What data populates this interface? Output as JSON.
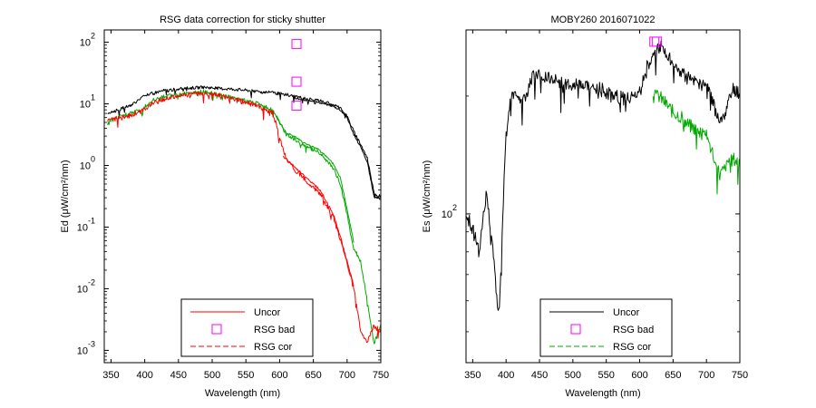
{
  "chart_data": [
    {
      "type": "line",
      "title": "RSG data correction for sticky shutter",
      "xlabel": "Wavelength (nm)",
      "ylabel": "Ed (μW/cm²/nm)",
      "xlim": [
        340,
        750
      ],
      "ylim_log10": [
        -3.2,
        2.2
      ],
      "y_scale": "log",
      "grid": false,
      "legend_position": "bottom-center",
      "x_ticks": [
        "350",
        "400",
        "450",
        "500",
        "550",
        "600",
        "650",
        "700",
        "750"
      ],
      "y_ticks": [
        {
          "base": "10",
          "exp": "-3"
        },
        {
          "base": "10",
          "exp": "-2"
        },
        {
          "base": "10",
          "exp": "-1"
        },
        {
          "base": "10",
          "exp": "0"
        },
        {
          "base": "10",
          "exp": "1"
        },
        {
          "base": "10",
          "exp": "2"
        }
      ],
      "legend": [
        {
          "label": "Uncor",
          "style": "solid",
          "color": "#ff0000"
        },
        {
          "label": "RSG bad",
          "style": "marker",
          "color": "#ff00ff"
        },
        {
          "label": "RSG cor",
          "style": "dashed",
          "color": "#ff0000"
        }
      ],
      "series": [
        {
          "color": "#000000",
          "style": "solid",
          "noise": 0.025,
          "x": [
            345,
            360,
            380,
            395,
            410,
            430,
            450,
            470,
            490,
            510,
            530,
            550,
            570,
            590,
            610,
            625,
            640,
            660,
            680,
            690,
            700,
            710,
            720,
            730,
            740,
            750
          ],
          "y": [
            0.85,
            0.9,
            0.98,
            1.1,
            1.17,
            1.22,
            1.24,
            1.26,
            1.27,
            1.25,
            1.24,
            1.22,
            1.2,
            1.18,
            1.15,
            1.12,
            1.08,
            1.05,
            0.99,
            0.93,
            0.8,
            0.55,
            0.35,
            0.12,
            -0.45,
            -0.5
          ]
        },
        {
          "color": "#000000",
          "style": "solid",
          "noise": 0.015,
          "x": [
            620,
            640,
            660,
            680,
            690,
            700,
            710,
            720,
            730,
            740,
            750
          ],
          "y": [
            1.1,
            1.05,
            1.02,
            0.96,
            0.9,
            0.78,
            0.5,
            0.3,
            0.05,
            -0.5,
            -0.55
          ]
        },
        {
          "color": "#00aa00",
          "style": "solid",
          "noise": 0.03,
          "x": [
            345,
            360,
            380,
            395,
            410,
            430,
            450,
            470,
            490,
            510,
            530,
            550,
            570,
            590,
            600,
            610,
            625,
            640,
            660,
            680,
            690,
            700,
            705,
            710,
            720,
            730,
            740,
            750
          ],
          "y": [
            0.7,
            0.78,
            0.85,
            0.9,
            1.05,
            1.12,
            1.15,
            1.18,
            1.2,
            1.15,
            1.1,
            1.05,
            1.0,
            0.9,
            0.7,
            0.5,
            0.4,
            0.3,
            0.2,
            -0.05,
            -0.3,
            -0.8,
            -1.1,
            -1.35,
            -1.55,
            -2.2,
            -2.9,
            -2.6
          ]
        },
        {
          "color": "#00aa00",
          "style": "solid",
          "noise": 0.015,
          "x": [
            595,
            610,
            625,
            640,
            660,
            680,
            690,
            700,
            710
          ],
          "y": [
            0.8,
            0.53,
            0.45,
            0.34,
            0.25,
            0.02,
            -0.2,
            -0.7,
            -1.25
          ]
        },
        {
          "color": "#ff0000",
          "style": "solid",
          "noise": 0.04,
          "x": [
            345,
            360,
            380,
            395,
            410,
            430,
            450,
            470,
            490,
            510,
            530,
            550,
            570,
            590,
            600,
            610,
            625,
            640,
            660,
            680,
            690,
            700,
            710,
            720,
            730,
            740,
            750
          ],
          "y": [
            0.72,
            0.76,
            0.82,
            0.88,
            1.0,
            1.08,
            1.12,
            1.16,
            1.17,
            1.14,
            1.08,
            1.02,
            0.95,
            0.85,
            0.45,
            0.1,
            -0.1,
            -0.25,
            -0.45,
            -0.85,
            -1.2,
            -1.6,
            -2.0,
            -2.7,
            -2.85,
            -2.6,
            -2.7
          ]
        },
        {
          "color": "#ff0000",
          "style": "solid",
          "noise": 0.015,
          "x": [
            605,
            625,
            640,
            660,
            680,
            690,
            700,
            710
          ],
          "y": [
            0.15,
            -0.05,
            -0.2,
            -0.4,
            -0.8,
            -1.15,
            -1.55,
            -1.95
          ]
        }
      ],
      "markers": [
        {
          "x": 625,
          "y": 1.97,
          "color": "#ff00ff"
        },
        {
          "x": 625,
          "y": 1.36,
          "color": "#ff00ff"
        },
        {
          "x": 625,
          "y": 0.97,
          "color": "#ff00ff"
        }
      ]
    },
    {
      "type": "line",
      "title": "MOBY260  2016071022",
      "xlabel": "Wavelength (nm)",
      "ylabel": "Es (μW/cm²/nm)",
      "xlim": [
        340,
        750
      ],
      "ylim_log10": [
        1.62,
        2.47
      ],
      "y_scale": "log",
      "grid": false,
      "legend_position": "bottom-center",
      "x_ticks": [
        "350",
        "400",
        "450",
        "500",
        "550",
        "600",
        "650",
        "700",
        "750"
      ],
      "y_ticks": [
        {
          "base": "10",
          "exp": "2"
        }
      ],
      "legend": [
        {
          "label": "Uncor",
          "style": "solid",
          "color": "#000000"
        },
        {
          "label": "RSG bad",
          "style": "marker",
          "color": "#ff00ff"
        },
        {
          "label": "RSG cor",
          "style": "dashed",
          "color": "#00aa00"
        }
      ],
      "series": [
        {
          "color": "#000000",
          "style": "solid",
          "noise": 0.018,
          "x": [
            340,
            350,
            360,
            370,
            380,
            385,
            390,
            395,
            400,
            405,
            410,
            420,
            430,
            440,
            450,
            460,
            470,
            480,
            490,
            500,
            510,
            520,
            530,
            540,
            550,
            560,
            570,
            580,
            590,
            600,
            610,
            620,
            630,
            640,
            650,
            660,
            670,
            680,
            690,
            700,
            710,
            720,
            730,
            740,
            750
          ],
          "y": [
            2.0,
            1.96,
            1.9,
            2.05,
            1.93,
            1.8,
            1.75,
            2.0,
            2.2,
            2.28,
            2.3,
            2.3,
            2.3,
            2.35,
            2.36,
            2.35,
            2.34,
            2.35,
            2.33,
            2.33,
            2.34,
            2.33,
            2.32,
            2.32,
            2.31,
            2.3,
            2.3,
            2.29,
            2.3,
            2.31,
            2.37,
            2.41,
            2.43,
            2.41,
            2.38,
            2.36,
            2.35,
            2.34,
            2.33,
            2.33,
            2.28,
            2.23,
            2.27,
            2.32,
            2.31
          ]
        },
        {
          "color": "#00aa00",
          "style": "solid",
          "noise": 0.018,
          "x": [
            620,
            630,
            640,
            650,
            660,
            670,
            680,
            690,
            700,
            710,
            720,
            730,
            740,
            750
          ],
          "y": [
            2.3,
            2.3,
            2.28,
            2.26,
            2.25,
            2.23,
            2.22,
            2.21,
            2.2,
            2.15,
            2.1,
            2.12,
            2.14,
            2.13
          ]
        }
      ],
      "markers": [
        {
          "x": 622,
          "y": 2.44,
          "color": "#ff00ff"
        },
        {
          "x": 626,
          "y": 2.44,
          "color": "#ff00ff"
        }
      ]
    }
  ]
}
